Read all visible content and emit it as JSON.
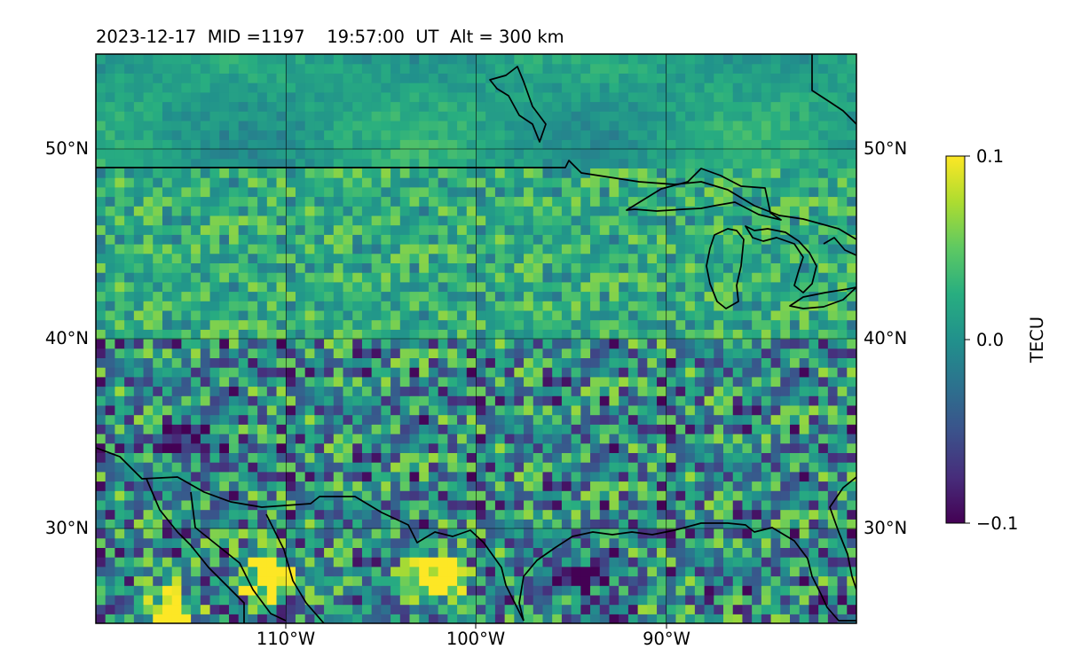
{
  "chart_data": {
    "type": "heatmap",
    "title": "2023-12-17  MID =1197    19:57:00  UT  Alt = 300 km",
    "date": "2023-12-17",
    "mid": 1197,
    "time_ut": "19:57:00",
    "altitude_km": 300,
    "projection": "geographic lat/lon map",
    "lon_range": [
      -120,
      -80
    ],
    "lat_range": [
      25,
      55
    ],
    "grid": true,
    "x_ticks": [
      {
        "value": -110,
        "label": "110°W"
      },
      {
        "value": -100,
        "label": "100°W"
      },
      {
        "value": -90,
        "label": "90°W"
      }
    ],
    "y_ticks": [
      {
        "value": 30,
        "label": "30°N"
      },
      {
        "value": 40,
        "label": "40°N"
      },
      {
        "value": 50,
        "label": "50°N"
      }
    ],
    "colorbar": {
      "label": "TECU",
      "colormap": "viridis",
      "min": -0.1,
      "max": 0.1,
      "ticks": [
        {
          "value": 0.1,
          "label": "0.1"
        },
        {
          "value": 0.0,
          "label": "0.0"
        },
        {
          "value": -0.1,
          "label": "−0.1"
        }
      ]
    },
    "field_summary": {
      "north_of_49N": "smooth, near 0 to slightly positive",
      "40N_to_49N": "speckled, mostly slightly positive",
      "south_of_40N": "noisy, many strongly negative pixels",
      "strong_positive_patches": [
        {
          "lon": -111,
          "lat": 27.5,
          "value": 0.1
        },
        {
          "lon": -116,
          "lat": 25.5,
          "value": 0.1
        },
        {
          "lon": -102,
          "lat": 27.5,
          "value": 0.1
        }
      ],
      "strong_negative_patches": [
        {
          "lon": -115,
          "lat": 34.5,
          "value": -0.1
        },
        {
          "lon": -95,
          "lat": 27.5,
          "value": -0.1
        }
      ]
    }
  }
}
